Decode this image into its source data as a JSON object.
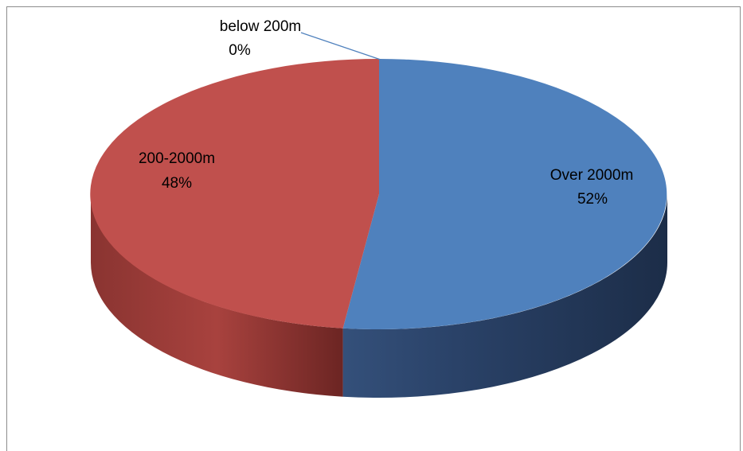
{
  "chart_data": {
    "type": "pie",
    "style": "3d",
    "slices": [
      {
        "label": "Over 2000m",
        "value": 52,
        "display": "52%",
        "color": "#4f81bd"
      },
      {
        "label": "200-2000m",
        "value": 48,
        "display": "48%",
        "color": "#c0504d"
      },
      {
        "label": "below 200m",
        "value": 0,
        "display": "0%",
        "color": "#9bbb59"
      }
    ]
  }
}
